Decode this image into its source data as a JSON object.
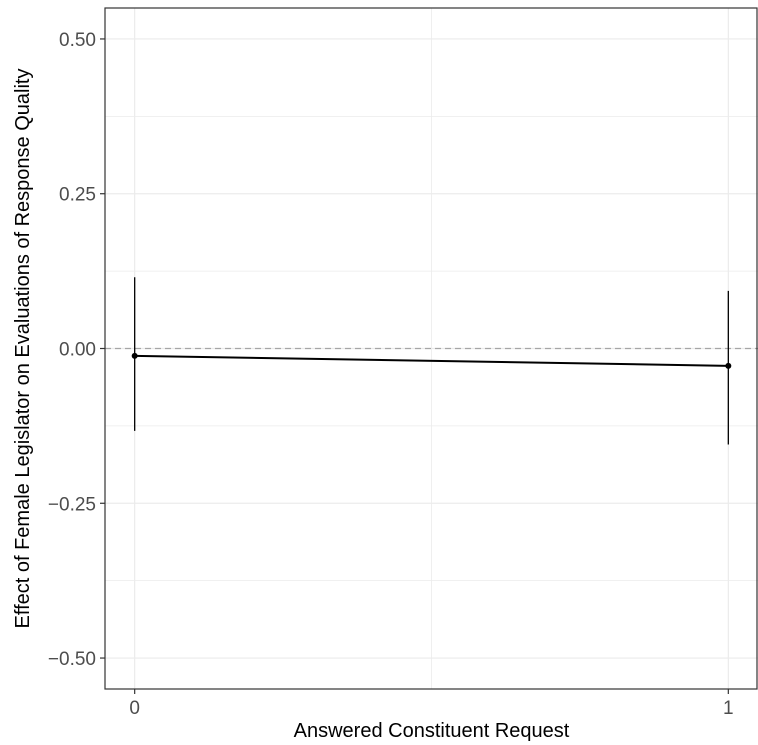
{
  "chart_data": {
    "type": "line",
    "title": "",
    "xlabel": "Answered Constituent Request",
    "ylabel": "Effect of Female Legislator on Evaluations of Response Quality",
    "x": [
      0,
      1
    ],
    "x_tick_labels": [
      "0",
      "1"
    ],
    "xlim": [
      -0.05,
      1.05
    ],
    "ylim": [
      -0.55,
      0.55
    ],
    "y_ticks": [
      0.5,
      0.25,
      0,
      -0.25,
      -0.5
    ],
    "y_tick_labels": [
      "0.50",
      "0.25",
      "0.00",
      "−0.25",
      "−0.50"
    ],
    "series": [
      {
        "values": [
          -0.012,
          -0.028
        ],
        "ci_lower": [
          -0.133,
          -0.155
        ],
        "ci_upper": [
          0.115,
          0.093
        ]
      }
    ],
    "reference_line": 0,
    "grid": true,
    "legend": "none",
    "colors": {
      "series": "#000000",
      "grid": "#ebebeb",
      "reference_line": "#a6a6a6",
      "axis": "#333333"
    }
  }
}
